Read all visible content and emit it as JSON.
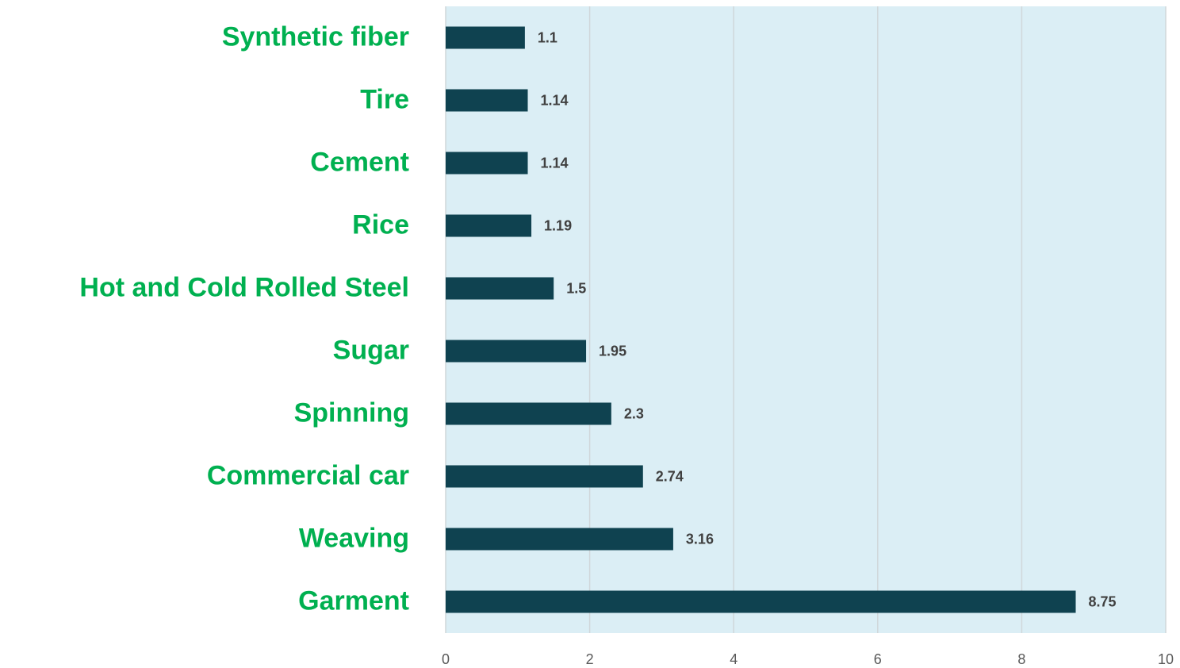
{
  "chart_data": {
    "type": "bar",
    "orientation": "horizontal",
    "categories": [
      "Synthetic fiber",
      "Tire",
      "Cement",
      "Rice",
      "Hot and Cold Rolled Steel",
      "Sugar",
      "Spinning",
      "Commercial car",
      "Weaving",
      "Garment"
    ],
    "values": [
      1.1,
      1.14,
      1.14,
      1.19,
      1.5,
      1.95,
      2.3,
      2.74,
      3.16,
      8.75
    ],
    "color": "#0f4250",
    "plot_background": "#dbeef5",
    "xlim": [
      0,
      10
    ],
    "xticks": [
      0,
      2,
      4,
      6,
      8,
      10
    ],
    "grid": true
  }
}
